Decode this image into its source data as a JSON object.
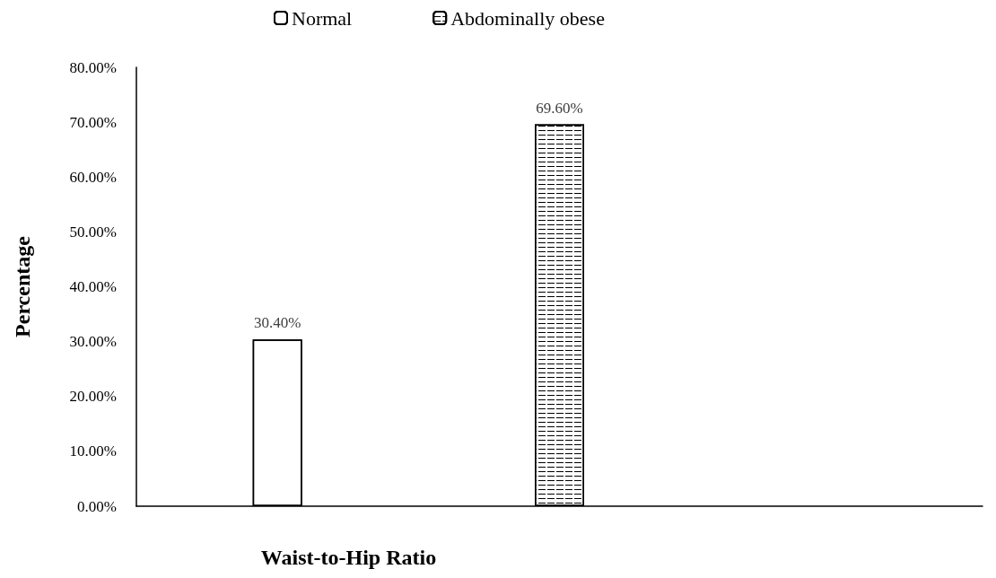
{
  "chart_data": {
    "type": "bar",
    "xlabel": "Waist-to-Hip Ratio",
    "ylabel": "Percentage",
    "categories": [
      null,
      null,
      null
    ],
    "series": [
      {
        "name": "Normal",
        "color": "#ffffff",
        "values": [
          30.4,
          null,
          null
        ],
        "value_labels": [
          "30.40%",
          null,
          null
        ]
      },
      {
        "name": "Abdominally obese",
        "color": "#ffffff",
        "values": [
          null,
          69.6,
          null
        ],
        "value_labels": [
          null,
          "69.60%",
          null
        ]
      }
    ],
    "ylim": [
      0,
      80
    ],
    "yticks": [
      {
        "value": 0,
        "label": "0.00%"
      },
      {
        "value": 10,
        "label": "10.00%"
      },
      {
        "value": 20,
        "label": "20.00%"
      },
      {
        "value": 30,
        "label": "30.00%"
      },
      {
        "value": 40,
        "label": "40.00%"
      },
      {
        "value": 50,
        "label": "50.00%"
      },
      {
        "value": 60,
        "label": "60.00%"
      },
      {
        "value": 70,
        "label": "70.00%"
      },
      {
        "value": 80,
        "label": "80.00%"
      }
    ],
    "grid": false,
    "legend": "top"
  }
}
